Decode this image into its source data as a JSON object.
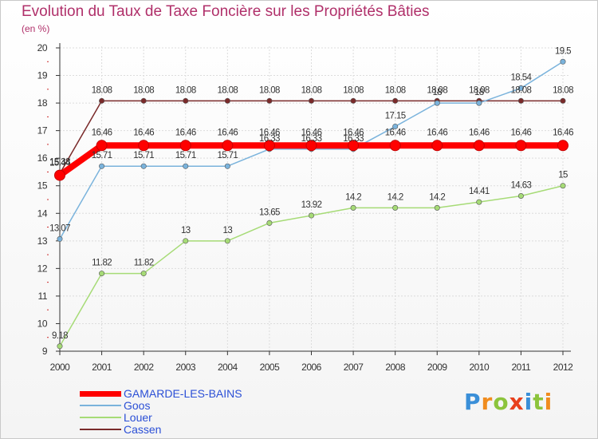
{
  "header": {
    "title": "Evolution du Taux de Taxe Foncière sur les Propriétés Bâties",
    "unit": "(en %)"
  },
  "logo": {
    "letters": [
      "P",
      "r",
      "o",
      "x",
      "i",
      "t",
      "i"
    ],
    "colors": [
      "#3a8fd8",
      "#f08c1e",
      "#8cc43c",
      "#e8401c",
      "#3a8fd8",
      "#8cc43c",
      "#f08c1e"
    ]
  },
  "chart_data": {
    "type": "line",
    "title": "Evolution du Taux de Taxe Foncière sur les Propriétés Bâties",
    "ylabel": "(en %)",
    "xlabel": "",
    "ylim": [
      9,
      20
    ],
    "yticks": [
      9,
      10,
      11,
      12,
      13,
      14,
      15,
      16,
      17,
      18,
      19,
      20
    ],
    "grid": true,
    "categories": [
      "2000",
      "2001",
      "2002",
      "2003",
      "2004",
      "2005",
      "2006",
      "2007",
      "2008",
      "2009",
      "2010",
      "2011",
      "2012"
    ],
    "series": [
      {
        "name": "Cassen",
        "color": "#7a2a2a",
        "values": [
          15.44,
          18.08,
          18.08,
          18.08,
          18.08,
          18.08,
          18.08,
          18.08,
          18.08,
          18.08,
          18.08,
          18.08,
          18.08
        ],
        "labels": [
          "15.44",
          "18.08",
          "18.08",
          "18.08",
          "18.08",
          "18.08",
          "18.08",
          "18.08",
          "18.08",
          "18.08",
          "18.08",
          "18.08",
          "18.08"
        ]
      },
      {
        "name": "Louer",
        "color": "#a6db76",
        "values": [
          9.18,
          11.82,
          11.82,
          13,
          13,
          13.65,
          13.92,
          14.2,
          14.2,
          14.2,
          14.41,
          14.63,
          15
        ],
        "labels": [
          "9.18",
          "11.82",
          "11.82",
          "13",
          "13",
          "13.65",
          "13.92",
          "14.2",
          "14.2",
          "14.2",
          "14.41",
          "14.63",
          "15"
        ]
      },
      {
        "name": "Goos",
        "color": "#7ab3dc",
        "values": [
          13.07,
          15.71,
          15.71,
          15.71,
          15.71,
          16.33,
          16.33,
          16.33,
          17.15,
          18,
          18,
          18.54,
          19.5
        ],
        "labels": [
          "13.07",
          "15.71",
          "15.71",
          "15.71",
          "15.71",
          "16.33",
          "16.33",
          "16.33",
          "17.15",
          "18",
          "18",
          "18.54",
          "19.5"
        ]
      },
      {
        "name": "GAMARDE-LES-BAINS",
        "color": "#ff0000",
        "values": [
          15.38,
          16.46,
          16.46,
          16.46,
          16.46,
          16.46,
          16.46,
          16.46,
          16.46,
          16.46,
          16.46,
          16.46,
          16.46
        ],
        "labels": [
          "15.38",
          "16.46",
          "16.46",
          "16.46",
          "16.46",
          "16.46",
          "16.46",
          "16.46",
          "16.46",
          "16.46",
          "16.46",
          "16.46",
          "16.46"
        ]
      }
    ],
    "legend": [
      "GAMARDE-LES-BAINS",
      "Goos",
      "Louer",
      "Cassen"
    ],
    "legend_position": "bottom-left"
  }
}
